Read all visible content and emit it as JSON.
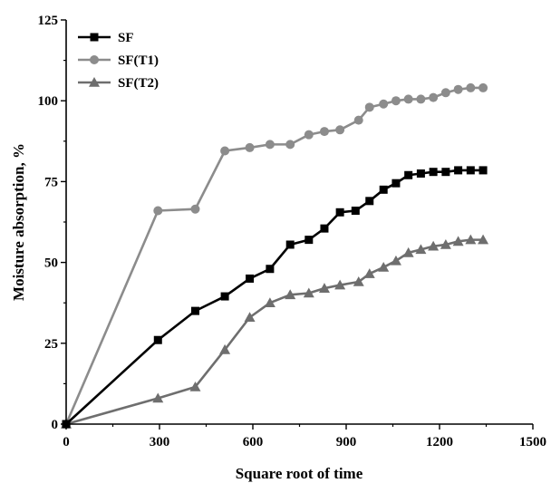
{
  "chart_data": {
    "type": "line",
    "title": "",
    "xlabel": "Square root of time",
    "ylabel": "Moisture absorption, %",
    "xlim": [
      0,
      1500
    ],
    "ylim": [
      0,
      125
    ],
    "xticks": [
      0,
      300,
      600,
      900,
      1200,
      1500
    ],
    "yticks": [
      0,
      25,
      50,
      75,
      100,
      125
    ],
    "legend_position": "top-left",
    "series": [
      {
        "name": "SF",
        "color": "#000000",
        "marker": "square",
        "points": [
          [
            0,
            0
          ],
          [
            295,
            26
          ],
          [
            415,
            35
          ],
          [
            510,
            39.5
          ],
          [
            590,
            45
          ],
          [
            655,
            48
          ],
          [
            720,
            55.5
          ],
          [
            780,
            57
          ],
          [
            830,
            60.5
          ],
          [
            880,
            65.5
          ],
          [
            930,
            66
          ],
          [
            975,
            69
          ],
          [
            1020,
            72.5
          ],
          [
            1060,
            74.5
          ],
          [
            1100,
            77
          ],
          [
            1140,
            77.5
          ],
          [
            1180,
            78
          ],
          [
            1220,
            78
          ],
          [
            1260,
            78.5
          ],
          [
            1300,
            78.5
          ],
          [
            1340,
            78.5
          ]
        ]
      },
      {
        "name": "SF(T1)",
        "color": "#8c8c8c",
        "marker": "circle",
        "points": [
          [
            0,
            0
          ],
          [
            295,
            66
          ],
          [
            415,
            66.5
          ],
          [
            510,
            84.5
          ],
          [
            590,
            85.5
          ],
          [
            655,
            86.5
          ],
          [
            720,
            86.5
          ],
          [
            780,
            89.5
          ],
          [
            830,
            90.5
          ],
          [
            880,
            91
          ],
          [
            940,
            94
          ],
          [
            975,
            98
          ],
          [
            1020,
            99
          ],
          [
            1060,
            100
          ],
          [
            1100,
            100.5
          ],
          [
            1140,
            100.5
          ],
          [
            1180,
            101
          ],
          [
            1220,
            102.5
          ],
          [
            1260,
            103.5
          ],
          [
            1300,
            104
          ],
          [
            1340,
            104
          ]
        ]
      },
      {
        "name": "SF(T2)",
        "color": "#6e6e6e",
        "marker": "triangle",
        "points": [
          [
            0,
            0
          ],
          [
            295,
            8
          ],
          [
            415,
            11.5
          ],
          [
            510,
            23
          ],
          [
            590,
            33
          ],
          [
            655,
            37.5
          ],
          [
            720,
            40
          ],
          [
            780,
            40.5
          ],
          [
            830,
            42
          ],
          [
            880,
            43
          ],
          [
            940,
            44
          ],
          [
            975,
            46.5
          ],
          [
            1020,
            48.5
          ],
          [
            1060,
            50.5
          ],
          [
            1100,
            53
          ],
          [
            1140,
            54
          ],
          [
            1180,
            55
          ],
          [
            1220,
            55.5
          ],
          [
            1260,
            56.5
          ],
          [
            1300,
            57
          ],
          [
            1340,
            57
          ]
        ]
      }
    ]
  }
}
